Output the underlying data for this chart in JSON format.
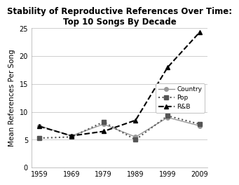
{
  "title": "Stability of Reproductive References Over Time:\nTop 10 Songs By Decade",
  "ylabel": "Mean References Per Song",
  "x": [
    1959,
    1969,
    1979,
    1989,
    1999,
    2009
  ],
  "country": [
    7.5,
    5.7,
    7.8,
    5.5,
    9.0,
    7.5
  ],
  "pop": [
    5.3,
    5.5,
    8.2,
    5.0,
    9.3,
    7.8
  ],
  "rnb": [
    7.4,
    5.7,
    6.5,
    8.5,
    18.0,
    24.3
  ],
  "ylim": [
    0,
    25
  ],
  "yticks": [
    0,
    5,
    10,
    15,
    20,
    25
  ],
  "bg_color": "#ffffff",
  "plot_bg": "#ffffff",
  "grid_color": "#c8c8c8",
  "country_color": "#999999",
  "pop_color": "#555555",
  "rnb_color": "#000000",
  "title_fontsize": 8.5,
  "axis_label_fontsize": 7.5,
  "tick_fontsize": 7,
  "legend_fontsize": 6.5
}
